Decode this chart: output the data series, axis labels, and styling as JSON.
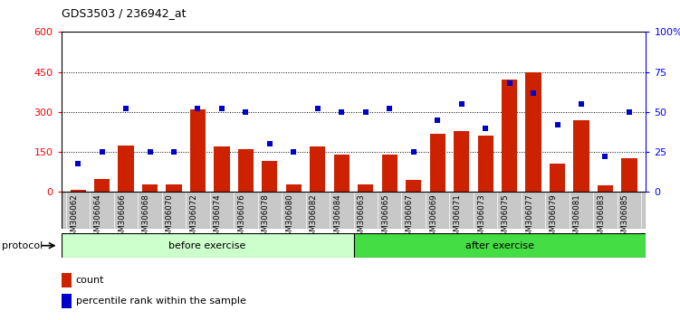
{
  "title": "GDS3503 / 236942_at",
  "samples": [
    "GSM306062",
    "GSM306064",
    "GSM306066",
    "GSM306068",
    "GSM306070",
    "GSM306072",
    "GSM306074",
    "GSM306076",
    "GSM306078",
    "GSM306080",
    "GSM306082",
    "GSM306084",
    "GSM306063",
    "GSM306065",
    "GSM306067",
    "GSM306069",
    "GSM306071",
    "GSM306073",
    "GSM306075",
    "GSM306077",
    "GSM306079",
    "GSM306081",
    "GSM306083",
    "GSM306085"
  ],
  "counts": [
    8,
    50,
    175,
    28,
    28,
    310,
    170,
    160,
    115,
    28,
    170,
    140,
    28,
    140,
    45,
    220,
    230,
    210,
    420,
    450,
    105,
    270,
    25,
    128
  ],
  "percentile_ranks": [
    18,
    25,
    52,
    25,
    25,
    52,
    52,
    50,
    30,
    25,
    52,
    50,
    50,
    52,
    25,
    45,
    55,
    40,
    68,
    62,
    42,
    55,
    22,
    50
  ],
  "n_before": 12,
  "n_after": 12,
  "before_label": "before exercise",
  "after_label": "after exercise",
  "protocol_label": "protocol",
  "left_ylim": [
    0,
    600
  ],
  "right_ylim": [
    0,
    100
  ],
  "left_yticks": [
    0,
    150,
    300,
    450,
    600
  ],
  "right_yticks": [
    0,
    25,
    50,
    75,
    100
  ],
  "bar_color": "#cc2200",
  "dot_color": "#0000cc",
  "before_color": "#ccffcc",
  "after_color": "#44dd44",
  "bg_color": "#c8c8c8",
  "legend_count_label": "count",
  "legend_pct_label": "percentile rank within the sample"
}
